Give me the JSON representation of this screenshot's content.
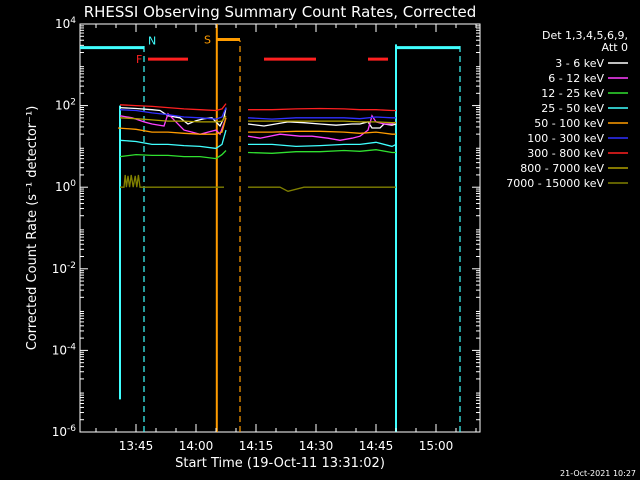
{
  "chart_data": {
    "type": "line",
    "title": "RHESSI Observing Summary Count Rates, Corrected",
    "xlabel": "Start Time (19-Oct-11 13:31:02)",
    "ylabel": "Corrected Count Rate (s⁻¹ detector⁻¹)",
    "yscale": "log",
    "ylim_exp": [
      -6,
      4
    ],
    "y_ticks": [
      {
        "exp": 4,
        "label": "10^4"
      },
      {
        "exp": 2,
        "label": "10^2"
      },
      {
        "exp": 0,
        "label": "10^0"
      },
      {
        "exp": -2,
        "label": "10^-2"
      },
      {
        "exp": -4,
        "label": "10^-4"
      },
      {
        "exp": -6,
        "label": "10^-6"
      }
    ],
    "xlim_min": [
      0,
      100
    ],
    "x_ticks": [
      {
        "min": 14,
        "label": "13:45"
      },
      {
        "min": 29,
        "label": "14:00"
      },
      {
        "min": 44,
        "label": "14:15"
      },
      {
        "min": 59,
        "label": "14:30"
      },
      {
        "min": 74,
        "label": "14:45"
      },
      {
        "min": 89,
        "label": "15:00"
      }
    ],
    "legend": {
      "header": [
        "Det 1,3,4,5,6,9,",
        "Att 0"
      ],
      "position": "top-right"
    },
    "series": [
      {
        "name": "3 - 6 keV",
        "color": "#ffffff",
        "segments": [
          {
            "x": [
              10,
              14,
              18,
              20,
              22,
              25,
              27,
              29,
              31,
              33,
              35,
              36,
              36.5
            ],
            "y": [
              1.95,
              1.93,
              1.9,
              1.88,
              1.75,
              1.7,
              1.55,
              1.63,
              1.68,
              1.7,
              1.5,
              1.7,
              1.95
            ]
          },
          {
            "x": [
              42,
              46,
              52,
              56,
              60,
              64,
              68,
              70,
              72,
              73,
              75,
              76,
              78,
              79
            ],
            "y": [
              1.55,
              1.5,
              1.6,
              1.58,
              1.55,
              1.52,
              1.55,
              1.55,
              1.6,
              1.45,
              1.45,
              1.55,
              1.52,
              1.55
            ]
          }
        ]
      },
      {
        "name": "6 - 12 keV",
        "color": "#ff40ff",
        "segments": [
          {
            "x": [
              10,
              13,
              16,
              18,
              21,
              22,
              24,
              26,
              28,
              30,
              32,
              34,
              35,
              36.5
            ],
            "y": [
              1.75,
              1.7,
              1.6,
              1.55,
              1.5,
              1.8,
              1.6,
              1.4,
              1.35,
              1.3,
              1.35,
              1.4,
              1.3,
              1.7
            ]
          },
          {
            "x": [
              42,
              45,
              50,
              55,
              58,
              62,
              65,
              68,
              70,
              72,
              73,
              74,
              76,
              78,
              79
            ],
            "y": [
              1.25,
              1.2,
              1.3,
              1.25,
              1.25,
              1.2,
              1.15,
              1.2,
              1.25,
              1.4,
              1.75,
              1.6,
              1.55,
              1.55,
              1.6
            ]
          }
        ]
      },
      {
        "name": "12 - 25 keV",
        "color": "#30e030",
        "segments": [
          {
            "x": [
              10,
              14,
              18,
              22,
              26,
              30,
              34,
              35.5,
              36.5
            ],
            "y": [
              0.75,
              0.8,
              0.78,
              0.78,
              0.75,
              0.75,
              0.7,
              0.8,
              0.9
            ]
          },
          {
            "x": [
              42,
              48,
              54,
              60,
              66,
              70,
              74,
              78,
              79
            ],
            "y": [
              0.85,
              0.83,
              0.87,
              0.87,
              0.9,
              0.88,
              0.92,
              0.85,
              0.85
            ]
          }
        ]
      },
      {
        "name": "25 - 50 keV",
        "color": "#40ffff",
        "segments": [
          {
            "x": [
              10,
              14,
              18,
              22,
              26,
              30,
              34,
              35.5,
              36.5
            ],
            "y": [
              1.15,
              1.12,
              1.05,
              1.05,
              1.02,
              1.0,
              0.95,
              1.05,
              1.4
            ]
          },
          {
            "x": [
              42,
              48,
              54,
              60,
              66,
              70,
              74,
              78,
              79
            ],
            "y": [
              1.05,
              1.05,
              1.0,
              1.02,
              1.05,
              1.05,
              1.1,
              1.0,
              1.05
            ]
          }
        ]
      },
      {
        "name": "50 - 100 keV",
        "color": "#ff9c00",
        "segments": [
          {
            "x": [
              9.5,
              14,
              18,
              22,
              26,
              30,
              34,
              35.5,
              36.5
            ],
            "y": [
              1.45,
              1.42,
              1.35,
              1.35,
              1.32,
              1.3,
              1.3,
              1.35,
              1.7
            ]
          },
          {
            "x": [
              42,
              48,
              54,
              60,
              66,
              70,
              74,
              78,
              79
            ],
            "y": [
              1.35,
              1.35,
              1.37,
              1.37,
              1.35,
              1.32,
              1.35,
              1.3,
              1.3
            ]
          }
        ]
      },
      {
        "name": "100 - 300 keV",
        "color": "#3030ff",
        "segments": [
          {
            "x": [
              10,
              14,
              18,
              22,
              26,
              30,
              34,
              35.5,
              36.5
            ],
            "y": [
              1.9,
              1.88,
              1.82,
              1.78,
              1.72,
              1.7,
              1.67,
              1.72,
              1.95
            ]
          },
          {
            "x": [
              42,
              48,
              54,
              60,
              66,
              70,
              74,
              78,
              79
            ],
            "y": [
              1.7,
              1.67,
              1.7,
              1.7,
              1.7,
              1.68,
              1.72,
              1.7,
              1.7
            ]
          }
        ]
      },
      {
        "name": "300 - 800 keV",
        "color": "#ff2020",
        "segments": [
          {
            "x": [
              10,
              14,
              18,
              22,
              26,
              30,
              34,
              35.5,
              36.5
            ],
            "y": [
              2.02,
              2.0,
              1.98,
              1.95,
              1.92,
              1.9,
              1.88,
              1.92,
              2.05
            ]
          },
          {
            "x": [
              42,
              48,
              54,
              60,
              66,
              70,
              74,
              78,
              79
            ],
            "y": [
              1.9,
              1.9,
              1.92,
              1.93,
              1.92,
              1.9,
              1.9,
              1.88,
              1.88
            ]
          }
        ]
      },
      {
        "name": "800 - 7000 keV",
        "color": "#b0a000",
        "segments": [
          {
            "x": [
              10,
              14,
              18,
              22,
              26,
              30,
              34,
              35.5,
              36.5
            ],
            "y": [
              1.7,
              1.68,
              1.65,
              1.62,
              1.62,
              1.6,
              1.6,
              1.62,
              1.75
            ]
          },
          {
            "x": [
              42,
              48,
              54,
              60,
              66,
              70,
              74,
              78,
              79
            ],
            "y": [
              1.62,
              1.62,
              1.62,
              1.62,
              1.62,
              1.6,
              1.6,
              1.58,
              1.58
            ]
          }
        ]
      },
      {
        "name": "7000 - 15000 keV",
        "color": "#808000",
        "segments": [
          {
            "x": [
              10,
              11,
              11.3,
              11.6,
              12,
              12.4,
              12.8,
              13.3,
              13.8,
              14.2,
              14.6,
              15,
              16,
              18,
              20,
              22,
              24,
              26,
              28,
              30,
              32,
              34,
              36
            ],
            "y": [
              0.0,
              0.0,
              0.3,
              0.0,
              0.28,
              0.0,
              0.3,
              0.0,
              0.28,
              0.0,
              0.3,
              0.0,
              0.0,
              0.0,
              0.0,
              0.0,
              0.0,
              0.0,
              0.0,
              0.0,
              0.0,
              0.0,
              0.0
            ]
          },
          {
            "x": [
              42,
              44,
              50,
              52,
              56,
              60,
              64,
              68,
              72,
              76,
              79
            ],
            "y": [
              0.0,
              0.0,
              0.0,
              -0.1,
              0.0,
              0.0,
              0.0,
              0.0,
              0.0,
              0.0,
              0.0
            ]
          }
        ]
      }
    ],
    "flags": [
      {
        "label": "N",
        "color": "#40ffff",
        "level_exp": 3.42,
        "segments": [
          [
            0,
            16
          ],
          [
            79,
            95
          ]
        ]
      },
      {
        "label": "F",
        "color": "#ff2020",
        "level_exp": 3.14,
        "segments": [
          [
            17,
            27
          ],
          [
            46,
            59
          ],
          [
            72,
            77
          ]
        ]
      },
      {
        "label": "S",
        "color": "#ff9c00",
        "level_exp": 3.62,
        "segments": [
          [
            34,
            40
          ]
        ]
      }
    ],
    "vertical_lines": [
      {
        "x": 10,
        "color": "#40ffff",
        "style": "solid",
        "ylim_exp": [
          -5.2,
          2
        ]
      },
      {
        "x": 16,
        "color": "#40ffff",
        "style": "dashed",
        "ylim_exp": [
          -6,
          3.5
        ]
      },
      {
        "x": 34.2,
        "color": "#ff9c00",
        "style": "solid",
        "ylim_exp": [
          -6,
          4
        ]
      },
      {
        "x": 40,
        "color": "#ff9c00",
        "style": "dashed",
        "ylim_exp": [
          -6,
          3.6
        ]
      },
      {
        "x": 79,
        "color": "#40ffff",
        "style": "solid",
        "ylim_exp": [
          -6,
          3.5
        ]
      },
      {
        "x": 95,
        "color": "#40ffff",
        "style": "dashed",
        "ylim_exp": [
          -6,
          3.5
        ]
      }
    ]
  },
  "footer": {
    "timestamp": "21-Oct-2021 10:27"
  }
}
